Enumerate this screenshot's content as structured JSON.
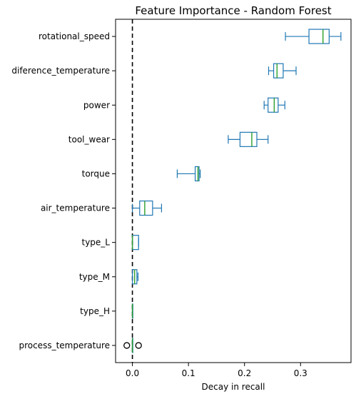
{
  "chart_data": {
    "type": "boxplot",
    "orientation": "horizontal",
    "title": "Feature Importance - Random Forest",
    "xlabel": "Decay in recall",
    "ylabel": "",
    "xlim": [
      -0.03,
      0.39
    ],
    "xticks": [
      {
        "value": 0.0,
        "label": "0.0"
      },
      {
        "value": 0.1,
        "label": "0.1"
      },
      {
        "value": 0.2,
        "label": "0.2"
      },
      {
        "value": 0.3,
        "label": "0.3"
      }
    ],
    "reference_line": {
      "x": 0.0,
      "style": "dashed",
      "color": "#000000"
    },
    "colors": {
      "box": "#1f77b4",
      "median": "#2ca02c",
      "flier_edge": "#000000"
    },
    "categories": [
      "rotational_speed",
      "diference_temperature",
      "power",
      "tool_wear",
      "torque",
      "air_temperature",
      "type_L",
      "type_M",
      "type_H",
      "process_temperature"
    ],
    "boxes": [
      {
        "label": "rotational_speed",
        "whisker_low": 0.273,
        "q1": 0.315,
        "median": 0.34,
        "q3": 0.351,
        "whisker_high": 0.372,
        "fliers": []
      },
      {
        "label": "diference_temperature",
        "whisker_low": 0.243,
        "q1": 0.252,
        "median": 0.258,
        "q3": 0.269,
        "whisker_high": 0.292,
        "fliers": []
      },
      {
        "label": "power",
        "whisker_low": 0.235,
        "q1": 0.242,
        "median": 0.253,
        "q3": 0.26,
        "whisker_high": 0.272,
        "fliers": []
      },
      {
        "label": "tool_wear",
        "whisker_low": 0.171,
        "q1": 0.192,
        "median": 0.213,
        "q3": 0.222,
        "whisker_high": 0.242,
        "fliers": []
      },
      {
        "label": "torque",
        "whisker_low": 0.08,
        "q1": 0.112,
        "median": 0.117,
        "q3": 0.119,
        "whisker_high": 0.121,
        "fliers": []
      },
      {
        "label": "air_temperature",
        "whisker_low": 0.0,
        "q1": 0.013,
        "median": 0.022,
        "q3": 0.036,
        "whisker_high": 0.052,
        "fliers": []
      },
      {
        "label": "type_L",
        "whisker_low": 0.0,
        "q1": 0.0,
        "median": 0.0,
        "q3": 0.011,
        "whisker_high": 0.011,
        "fliers": []
      },
      {
        "label": "type_M",
        "whisker_low": 0.0,
        "q1": 0.0,
        "median": 0.004,
        "q3": 0.008,
        "whisker_high": 0.01,
        "fliers": []
      },
      {
        "label": "type_H",
        "whisker_low": 0.0,
        "q1": 0.0,
        "median": 0.0,
        "q3": 0.0,
        "whisker_high": 0.0,
        "fliers": []
      },
      {
        "label": "process_temperature",
        "whisker_low": 0.0,
        "q1": 0.0,
        "median": 0.0,
        "q3": 0.0,
        "whisker_high": 0.0,
        "fliers": [
          -0.01,
          0.011
        ]
      }
    ]
  }
}
